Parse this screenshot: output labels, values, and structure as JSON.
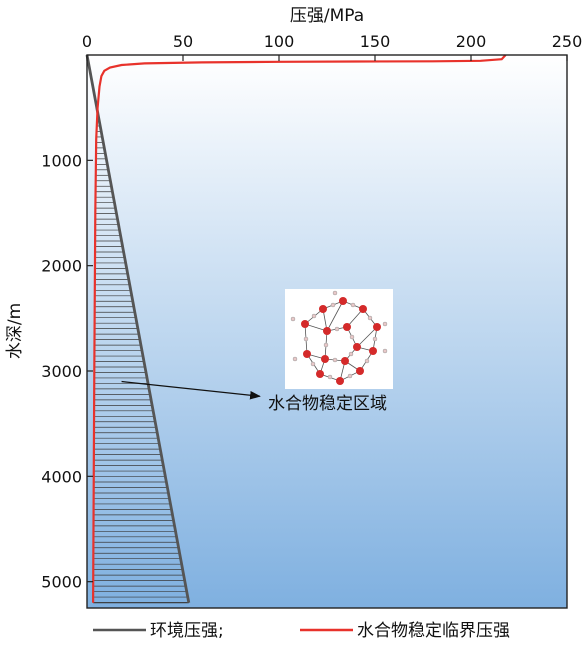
{
  "chart_data": {
    "type": "line",
    "xlabel": "压强/MPa",
    "ylabel": "水深/m",
    "x_axis_position": "top",
    "y_axis_inverted": true,
    "xlim": [
      0,
      250
    ],
    "ylim": [
      0,
      5250
    ],
    "x_ticks": [
      0,
      50,
      100,
      150,
      200,
      250
    ],
    "y_ticks": [
      1000,
      2000,
      3000,
      4000,
      5000
    ],
    "grid": false,
    "legend_position": "bottom",
    "series": [
      {
        "name": "环境压强;",
        "color": "#555555",
        "points": [
          [
            0,
            0
          ],
          [
            53,
            5200
          ]
        ]
      },
      {
        "name": "水合物稳定临界压强",
        "color": "#e8322b",
        "points": [
          [
            218,
            0
          ],
          [
            216,
            40
          ],
          [
            205,
            55
          ],
          [
            180,
            60
          ],
          [
            140,
            62
          ],
          [
            100,
            65
          ],
          [
            60,
            70
          ],
          [
            30,
            80
          ],
          [
            18,
            95
          ],
          [
            12,
            120
          ],
          [
            9,
            150
          ],
          [
            7.5,
            200
          ],
          [
            6.5,
            300
          ],
          [
            5.5,
            500
          ],
          [
            4.8,
            800
          ],
          [
            4.3,
            1500
          ],
          [
            3.8,
            3000
          ],
          [
            3.2,
            5200
          ]
        ]
      }
    ],
    "annotations": [
      {
        "text": "水合物稳定区域",
        "arrow_from": [
          18,
          3100
        ],
        "arrow_to": [
          90,
          3240
        ]
      }
    ],
    "region": {
      "fill_colors": [
        "#ffffff",
        "#7fb0e0"
      ]
    }
  }
}
